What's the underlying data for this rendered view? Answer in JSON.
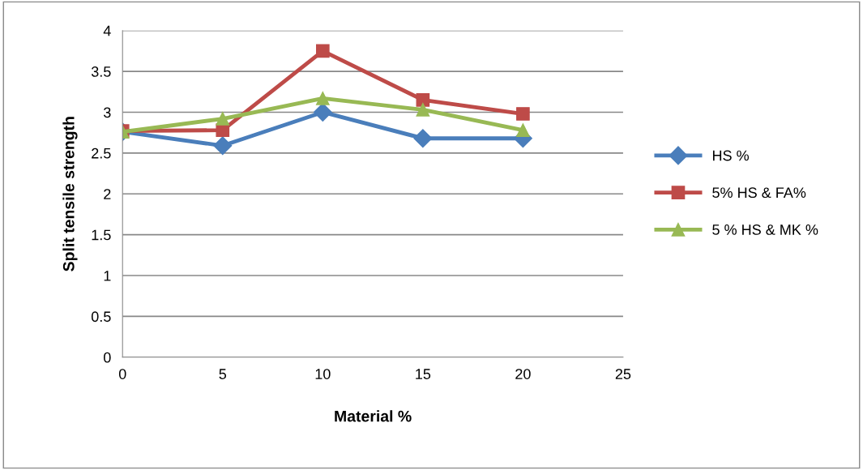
{
  "chart_data": {
    "type": "line",
    "xlabel": "Material %",
    "ylabel": "Split tensile strength",
    "x": [
      0,
      5,
      10,
      15,
      20
    ],
    "series": [
      {
        "name": "HS %",
        "color": "#4a7ebb",
        "marker": "diamond",
        "values": [
          2.76,
          2.59,
          3.0,
          2.68,
          2.68
        ]
      },
      {
        "name": "5% HS & FA%",
        "color": "#be4b48",
        "marker": "square",
        "values": [
          2.77,
          2.78,
          3.75,
          3.15,
          2.98
        ]
      },
      {
        "name": "5 % HS & MK %",
        "color": "#98b954",
        "marker": "triangle",
        "values": [
          2.76,
          2.92,
          3.17,
          3.03,
          2.78
        ]
      }
    ],
    "xlim": [
      0,
      25
    ],
    "xticks": [
      0,
      5,
      10,
      15,
      20,
      25
    ],
    "ylim": [
      0,
      4
    ],
    "yticks": [
      0,
      0.5,
      1,
      1.5,
      2,
      2.5,
      3,
      3.5,
      4
    ],
    "grid": "y",
    "legend": "right",
    "line_style": "solid"
  }
}
